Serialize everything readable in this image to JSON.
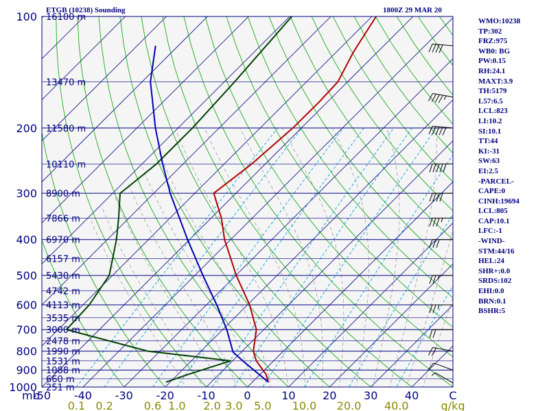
{
  "header": {
    "title": "ETGB (10238) Sounding",
    "valid_time": "1800Z 29 MAR 20"
  },
  "indices": [
    "WMO:10238",
    "TP:302",
    "FRZ:975",
    "WB0: BG",
    "PW:0.15",
    "RH:24.1",
    "MAXT:3.9",
    "TH:5179",
    "L57:6.5",
    "LCL:823",
    "LI:10.2",
    "SI:10.1",
    "TT:44",
    "KI:-31",
    "SW:63",
    "EI:2.5",
    "-PARCEL-",
    "CAPE:0",
    "CINH:19694",
    "LCL:805",
    "CAP:10.1",
    "LFC:-1",
    "-WIND-",
    "STM:44/16",
    "HEL:24",
    "SHR+:0.0",
    "SRDS:102",
    "EHI:0.0",
    "BRN:0.1",
    "BSHR:5"
  ],
  "colors": {
    "plot_bg": "#f5f5f5",
    "isobar": "#000080",
    "isotherm": "#000080",
    "dry_adiabat": "#00a000",
    "moist_adiabat": "#909090",
    "mixing_ratio": "#00a0e0",
    "temperature": "#b00000",
    "dewpoint": "#004000",
    "parcel": "#0000b0",
    "axis_text": "#000080",
    "mixing_text": "#888800"
  },
  "chart_data": {
    "type": "line",
    "title": "ETGB (10238) Sounding",
    "chart_kind": "skew-T log-P diagram",
    "x_axis_label": "C",
    "mixing_ratio_label": "g/kg",
    "y_axis_label": "mb",
    "pressure_range_mb": [
      1000,
      100
    ],
    "temperature_range_C": [
      -50,
      50
    ],
    "y_scale": "log",
    "grid": true,
    "pressure_levels": [
      100,
      200,
      300,
      400,
      500,
      600,
      700,
      800,
      900,
      1000
    ],
    "x_ticks": [
      -50,
      -40,
      -30,
      -20,
      -10,
      0,
      10,
      20,
      30,
      40,
      50
    ],
    "x_tick_labels": [
      "-50",
      "-40",
      "-30",
      "-20",
      "-10",
      "0",
      "10",
      "20",
      "30",
      "40",
      "C"
    ],
    "mixing_ratio_labels": [
      "0.1",
      "0.2",
      "0.6",
      "1.0",
      "2.0",
      "3.0",
      "5.0",
      "10.0",
      "20.0",
      "40.0",
      "g/kg"
    ],
    "mixing_ratio_values": [
      0.1,
      0.2,
      0.6,
      1.0,
      2.0,
      3.0,
      5.0,
      10.0,
      20.0,
      40.0
    ],
    "height_labels": [
      {
        "p": 100,
        "label": "16100 m"
      },
      {
        "p": 150,
        "label": "13470 m"
      },
      {
        "p": 200,
        "label": "11580 m"
      },
      {
        "p": 250,
        "label": "10110 m"
      },
      {
        "p": 300,
        "label": "8900 m"
      },
      {
        "p": 350,
        "label": "7866 m"
      },
      {
        "p": 400,
        "label": "6970 m"
      },
      {
        "p": 450,
        "label": "6157 m"
      },
      {
        "p": 500,
        "label": "5430 m"
      },
      {
        "p": 550,
        "label": "4742 m"
      },
      {
        "p": 600,
        "label": "4113 m"
      },
      {
        "p": 650,
        "label": "3535 m"
      },
      {
        "p": 700,
        "label": "3000 m"
      },
      {
        "p": 750,
        "label": "2478 m"
      },
      {
        "p": 800,
        "label": "1990 m"
      },
      {
        "p": 850,
        "label": "1531 m"
      },
      {
        "p": 900,
        "label": "1088 m"
      },
      {
        "p": 950,
        "label": "660 m"
      },
      {
        "p": 1000,
        "label": "251 m"
      }
    ],
    "series": [
      {
        "key": "temperature",
        "points": [
          [
            970,
            3.9
          ],
          [
            925,
            1.5
          ],
          [
            850,
            -4.2
          ],
          [
            800,
            -7.3
          ],
          [
            700,
            -11.8
          ],
          [
            600,
            -19.5
          ],
          [
            500,
            -29.9
          ],
          [
            400,
            -41.5
          ],
          [
            350,
            -47.5
          ],
          [
            300,
            -55.4
          ],
          [
            250,
            -53.3
          ],
          [
            200,
            -52.1
          ],
          [
            170,
            -52.0
          ],
          [
            150,
            -52.4
          ],
          [
            125,
            -55.8
          ],
          [
            100,
            -59.0
          ]
        ]
      },
      {
        "key": "dewpoint",
        "points": [
          [
            970,
            -21
          ],
          [
            925,
            -17.5
          ],
          [
            850,
            -10.5
          ],
          [
            800,
            -33
          ],
          [
            700,
            -58
          ],
          [
            600,
            -58.5
          ],
          [
            500,
            -60.8
          ],
          [
            400,
            -67.8
          ],
          [
            350,
            -72.5
          ],
          [
            300,
            -78.2
          ],
          [
            280,
            -77.5
          ],
          [
            250,
            -76.5
          ],
          [
            200,
            -76.5
          ],
          [
            150,
            -77.5
          ],
          [
            100,
            -79.5
          ]
        ]
      },
      {
        "key": "parcel",
        "points": [
          [
            970,
            3.9
          ],
          [
            850,
            -7.5
          ],
          [
            805,
            -12
          ],
          [
            700,
            -19
          ],
          [
            600,
            -27.5
          ],
          [
            500,
            -38
          ],
          [
            400,
            -50.5
          ],
          [
            300,
            -66
          ],
          [
            250,
            -75
          ],
          [
            200,
            -85.5
          ],
          [
            150,
            -98
          ],
          [
            120,
            -105.5
          ]
        ]
      }
    ],
    "wind_barbs": [
      {
        "p": 120,
        "dir": 275,
        "spd": 40
      },
      {
        "p": 165,
        "dir": 280,
        "spd": 45
      },
      {
        "p": 200,
        "dir": 275,
        "spd": 50
      },
      {
        "p": 250,
        "dir": 270,
        "spd": 50
      },
      {
        "p": 300,
        "dir": 270,
        "spd": 40
      },
      {
        "p": 350,
        "dir": 270,
        "spd": 35
      },
      {
        "p": 400,
        "dir": 270,
        "spd": 30
      },
      {
        "p": 500,
        "dir": 270,
        "spd": 25
      },
      {
        "p": 600,
        "dir": 270,
        "spd": 25
      },
      {
        "p": 700,
        "dir": 270,
        "spd": 20
      },
      {
        "p": 800,
        "dir": 280,
        "spd": 20
      },
      {
        "p": 900,
        "dir": 290,
        "spd": 10
      },
      {
        "p": 975,
        "dir": 300,
        "spd": 5
      }
    ]
  }
}
